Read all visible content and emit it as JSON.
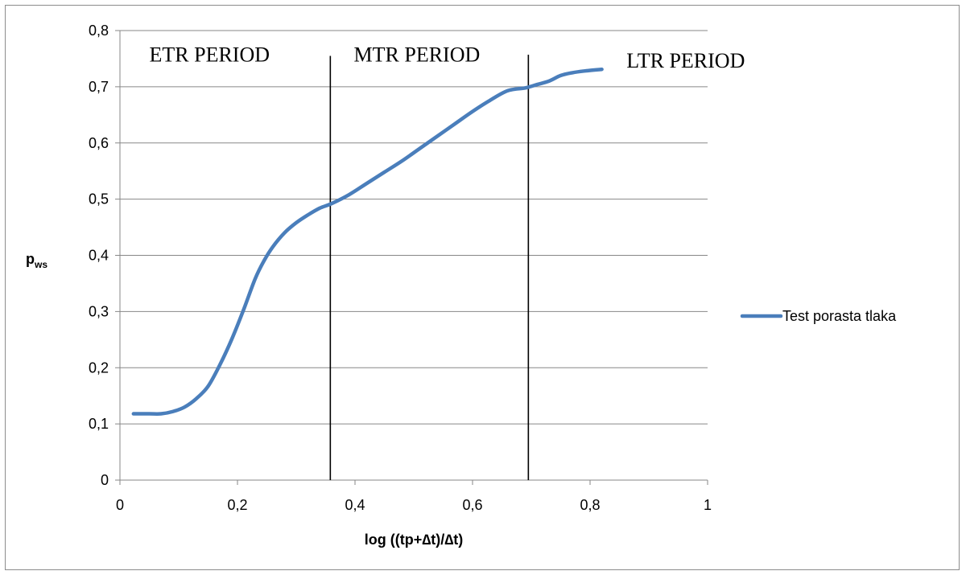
{
  "chart_data": {
    "type": "line",
    "xlabel": "log ((tp+∆t)/∆t)",
    "ylabel_main": "p",
    "ylabel_sub": "ws",
    "xlim": [
      0,
      1
    ],
    "ylim": [
      0,
      0.8
    ],
    "x_ticks": [
      0,
      0.2,
      0.4,
      0.6,
      0.8,
      1
    ],
    "x_tick_labels": [
      "0",
      "0,2",
      "0,4",
      "0,6",
      "0,8",
      "1"
    ],
    "y_ticks": [
      0,
      0.1,
      0.2,
      0.3,
      0.4,
      0.5,
      0.6,
      0.7,
      0.8
    ],
    "y_tick_labels": [
      "0",
      "0,1",
      "0,2",
      "0,3",
      "0,4",
      "0,5",
      "0,6",
      "0,7",
      "0,8"
    ],
    "grid": "horizontal",
    "legend_position": "right",
    "series": [
      {
        "name": "Test porasta tlaka",
        "color": "#4a7ebb",
        "x": [
          0.023,
          0.05,
          0.07,
          0.09,
          0.11,
          0.13,
          0.15,
          0.17,
          0.19,
          0.21,
          0.23,
          0.245,
          0.26,
          0.28,
          0.3,
          0.32,
          0.34,
          0.36,
          0.39,
          0.42,
          0.45,
          0.48,
          0.51,
          0.54,
          0.57,
          0.6,
          0.63,
          0.66,
          0.69,
          0.71,
          0.73,
          0.75,
          0.77,
          0.79,
          0.82
        ],
        "y": [
          0.118,
          0.118,
          0.118,
          0.122,
          0.13,
          0.145,
          0.167,
          0.205,
          0.25,
          0.302,
          0.358,
          0.39,
          0.415,
          0.44,
          0.458,
          0.472,
          0.484,
          0.492,
          0.508,
          0.528,
          0.548,
          0.568,
          0.59,
          0.612,
          0.634,
          0.656,
          0.676,
          0.693,
          0.698,
          0.704,
          0.71,
          0.72,
          0.725,
          0.728,
          0.731
        ]
      }
    ],
    "vertical_lines": [
      {
        "x": 0.358,
        "y_top": 0.755
      },
      {
        "x": 0.695,
        "y_top": 0.757
      }
    ],
    "annotations": [
      {
        "text": "ETR PERIOD",
        "x": 0.05,
        "y": 0.745
      },
      {
        "text": "MTR PERIOD",
        "x": 0.398,
        "y": 0.745
      },
      {
        "text": "LTR PERIOD",
        "x": 0.862,
        "y": 0.734
      }
    ]
  }
}
